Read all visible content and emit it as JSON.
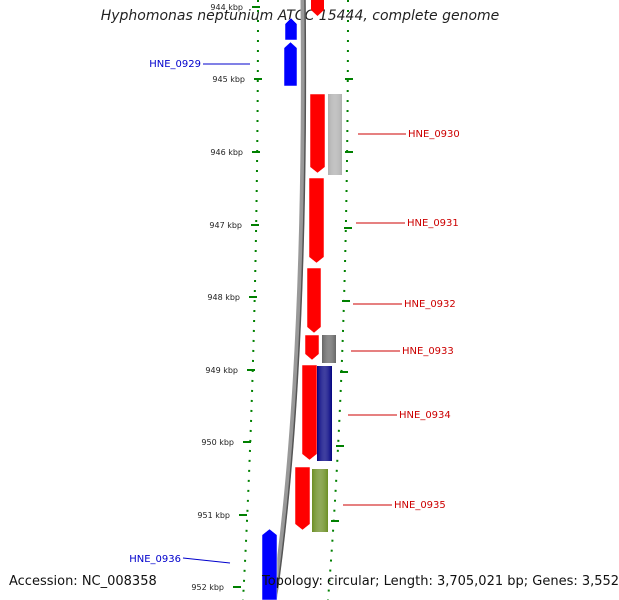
{
  "title": "Hyphomonas neptunium ATCC 15444, complete genome",
  "footer": {
    "accession": "Accession: NC_008358",
    "summary": "Topology: circular; Length: 3,705,021 bp; Genes: 3,552"
  },
  "scale": {
    "unit": "kbp",
    "ticks": [
      "944 kbp",
      "945 kbp",
      "946 kbp",
      "947 kbp",
      "948 kbp",
      "949 kbp",
      "950 kbp",
      "951 kbp",
      "952 kbp"
    ]
  },
  "genes": [
    {
      "name": "HNE_0929",
      "strand": "-",
      "color": "#0000ff",
      "labeled": true
    },
    {
      "name": "HNE_0930",
      "strand": "+",
      "color": "#ff0000",
      "labeled": true
    },
    {
      "name": "HNE_0931",
      "strand": "+",
      "color": "#ff0000",
      "labeled": true
    },
    {
      "name": "HNE_0932",
      "strand": "+",
      "color": "#ff0000",
      "labeled": true
    },
    {
      "name": "HNE_0933",
      "strand": "+",
      "color": "#ff0000",
      "labeled": true
    },
    {
      "name": "HNE_0934",
      "strand": "+",
      "color": "#ff0000",
      "labeled": true
    },
    {
      "name": "HNE_0935",
      "strand": "+",
      "color": "#ff0000",
      "labeled": true
    },
    {
      "name": "HNE_0936",
      "strand": "-",
      "color": "#0000ff",
      "labeled": true
    }
  ],
  "features": [
    {
      "gene": "HNE_0930",
      "color": "#b0b0b0"
    },
    {
      "gene": "HNE_0933",
      "color": "#666666"
    },
    {
      "gene": "HNE_0934",
      "color": "#000080"
    },
    {
      "gene": "HNE_0935",
      "color": "#6b8e23"
    }
  ],
  "colors": {
    "minus_strand": "#0000ff",
    "plus_strand": "#ff0000",
    "minus_label": "#0000cc",
    "plus_label": "#cc0000",
    "tick": "#008000"
  }
}
